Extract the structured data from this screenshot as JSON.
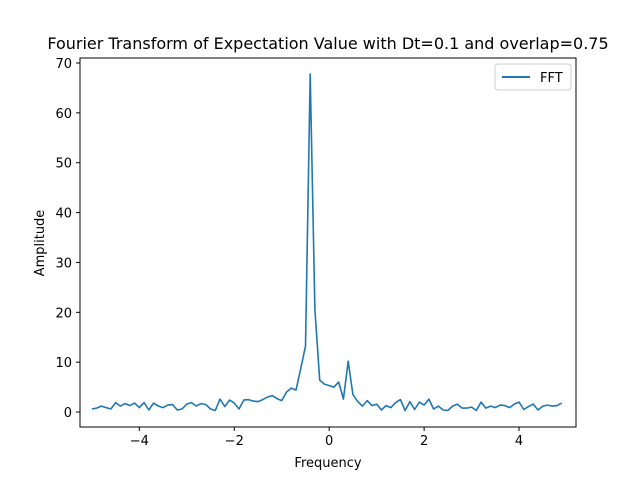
{
  "chart_data": {
    "type": "line",
    "title": "Fourier Transform of Expectation Value with Dt=0.1 and overlap=0.75",
    "xlabel": "Frequency",
    "ylabel": "Amplitude",
    "xlim": [
      -5.25,
      5.2
    ],
    "ylim": [
      -3.0,
      71.0
    ],
    "xticks": [
      -4,
      -2,
      0,
      2,
      4
    ],
    "yticks": [
      0,
      10,
      20,
      30,
      40,
      50,
      60,
      70
    ],
    "xtick_labels": [
      "−4",
      "−2",
      "0",
      "2",
      "4"
    ],
    "ytick_labels": [
      "0",
      "10",
      "20",
      "30",
      "40",
      "50",
      "60",
      "70"
    ],
    "grid": false,
    "legend_position": "top-right",
    "colors": {
      "series": "#1f77b4"
    },
    "series": [
      {
        "name": "FFT",
        "x": [
          -5.0,
          -4.9,
          -4.8,
          -4.7,
          -4.6,
          -4.5,
          -4.4,
          -4.3,
          -4.2,
          -4.1,
          -4.0,
          -3.9,
          -3.8,
          -3.7,
          -3.6,
          -3.5,
          -3.4,
          -3.3,
          -3.2,
          -3.1,
          -3.0,
          -2.9,
          -2.8,
          -2.7,
          -2.6,
          -2.5,
          -2.4,
          -2.3,
          -2.2,
          -2.1,
          -2.0,
          -1.9,
          -1.8,
          -1.7,
          -1.6,
          -1.5,
          -1.4,
          -1.3,
          -1.2,
          -1.1,
          -1.0,
          -0.9,
          -0.8,
          -0.7,
          -0.6,
          -0.5,
          -0.4,
          -0.3,
          -0.2,
          -0.1,
          0.0,
          0.1,
          0.2,
          0.3,
          0.4,
          0.5,
          0.6,
          0.7,
          0.8,
          0.9,
          1.0,
          1.1,
          1.2,
          1.3,
          1.4,
          1.5,
          1.6,
          1.7,
          1.8,
          1.9,
          2.0,
          2.1,
          2.2,
          2.3,
          2.4,
          2.5,
          2.6,
          2.7,
          2.8,
          2.9,
          3.0,
          3.1,
          3.2,
          3.3,
          3.4,
          3.5,
          3.6,
          3.7,
          3.8,
          3.9,
          4.0,
          4.1,
          4.2,
          4.3,
          4.4,
          4.5,
          4.6,
          4.7,
          4.8,
          4.9
        ],
        "y": [
          0.6,
          0.8,
          1.2,
          0.9,
          0.6,
          1.9,
          1.2,
          1.7,
          1.3,
          1.8,
          0.9,
          1.9,
          0.4,
          1.8,
          1.2,
          0.9,
          1.4,
          1.5,
          0.4,
          0.6,
          1.6,
          1.9,
          1.2,
          1.7,
          1.5,
          0.6,
          0.3,
          2.6,
          1.1,
          2.4,
          1.8,
          0.6,
          2.4,
          2.5,
          2.2,
          2.1,
          2.5,
          3.0,
          3.3,
          2.7,
          2.3,
          4.0,
          4.8,
          4.4,
          8.7,
          13.2,
          67.8,
          20.5,
          6.4,
          5.6,
          5.3,
          5.0,
          6.0,
          2.6,
          10.2,
          3.5,
          2.1,
          1.2,
          2.3,
          1.3,
          1.6,
          0.4,
          1.3,
          0.9,
          1.9,
          2.5,
          0.3,
          2.1,
          0.5,
          2.0,
          1.4,
          2.6,
          0.6,
          1.2,
          0.4,
          0.3,
          1.2,
          1.6,
          0.8,
          0.8,
          1.0,
          0.3,
          2.0,
          0.8,
          1.2,
          0.9,
          1.4,
          1.3,
          0.9,
          1.6,
          2.0,
          0.5,
          1.1,
          1.6,
          0.4,
          1.2,
          1.4,
          1.2,
          1.3,
          1.8
        ]
      }
    ]
  }
}
